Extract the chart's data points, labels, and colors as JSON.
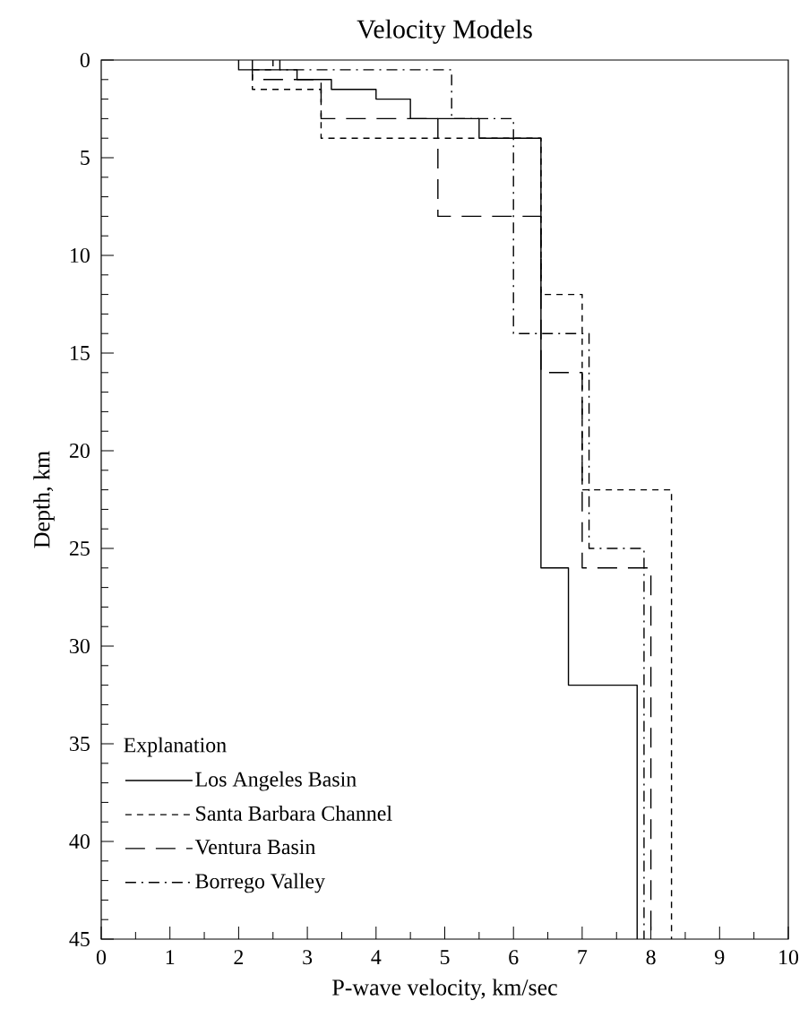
{
  "chart_data": {
    "type": "line",
    "title": "Velocity Models",
    "xlabel": "P-wave velocity, km/sec",
    "ylabel": "Depth, km",
    "legend_title": "Explanation",
    "legend": "bottom left",
    "xlim": [
      0,
      10
    ],
    "xticks": [
      0,
      1,
      2,
      3,
      4,
      5,
      6,
      7,
      8,
      9,
      10
    ],
    "ylim": [
      45,
      0
    ],
    "yticks": [
      0,
      5,
      10,
      15,
      20,
      25,
      30,
      35,
      40,
      45
    ],
    "series": [
      {
        "name": "Los Angeles Basin",
        "color": "#000000",
        "line_style": "solid",
        "x": [
          2.0,
          2.0,
          2.85,
          2.85,
          3.35,
          3.35,
          4.0,
          4.0,
          4.5,
          4.5,
          5.5,
          5.5,
          6.4,
          6.4,
          6.8,
          6.8,
          7.8,
          7.8
        ],
        "values": [
          0,
          0.5,
          0.5,
          1,
          1,
          1.5,
          1.5,
          2,
          2,
          3,
          3,
          4,
          4,
          26,
          26,
          32,
          32,
          45
        ]
      },
      {
        "name": "Santa Barbara Channel",
        "color": "#000000",
        "line_style": "dashed",
        "x": [
          2.5,
          2.5,
          2.2,
          2.2,
          3.2,
          3.2,
          6.4,
          6.4,
          7.0,
          7.0,
          8.3,
          8.3
        ],
        "values": [
          0,
          0.5,
          0.5,
          1.5,
          1.5,
          4,
          4,
          12,
          12,
          22,
          22,
          45
        ]
      },
      {
        "name": "Ventura Basin",
        "color": "#000000",
        "line_style": "long dashed",
        "x": [
          2.2,
          2.2,
          3.2,
          3.2,
          4.9,
          4.9,
          6.4,
          6.4,
          7.0,
          7.0,
          8.0,
          8.0
        ],
        "values": [
          0,
          1,
          1,
          3,
          3,
          8,
          8,
          16,
          16,
          26,
          26,
          45
        ]
      },
      {
        "name": "Borrego Valley",
        "color": "#000000",
        "line_style": "dash dot",
        "x": [
          2.6,
          2.6,
          5.1,
          5.1,
          6.0,
          6.0,
          7.1,
          7.1,
          7.9,
          7.9
        ],
        "values": [
          0,
          0.5,
          0.5,
          3,
          3,
          14,
          14,
          25,
          25,
          45
        ]
      }
    ]
  }
}
